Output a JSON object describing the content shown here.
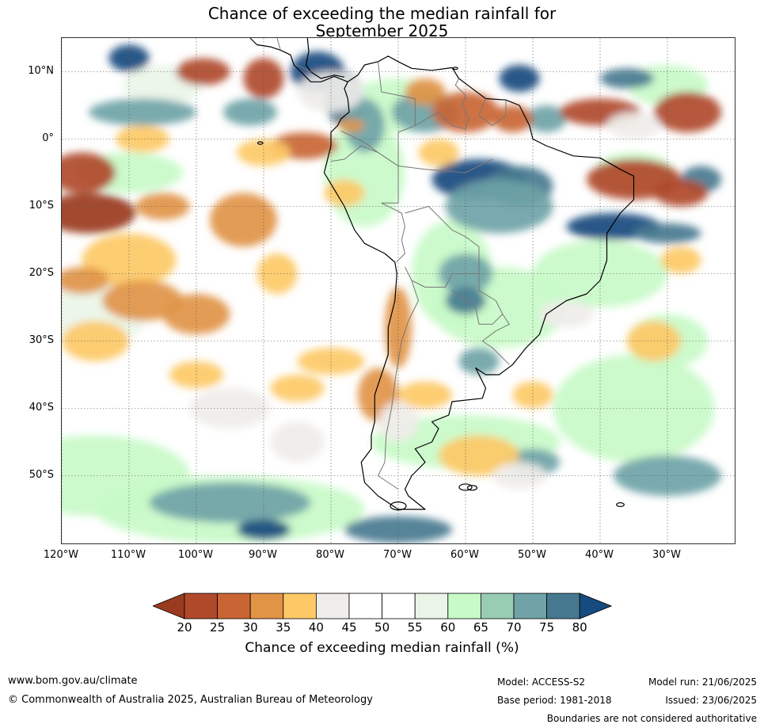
{
  "title": {
    "line1": "Chance of exceeding the median rainfall for",
    "line2": "September 2025"
  },
  "lat_labels": [
    "10°N",
    "0°",
    "10°S",
    "20°S",
    "30°S",
    "40°S",
    "50°S"
  ],
  "lon_labels": [
    "120°W",
    "110°W",
    "100°W",
    "90°W",
    "80°W",
    "70°W",
    "60°W",
    "50°W",
    "40°W",
    "30°W"
  ],
  "colorbar": {
    "ticks": [
      "20",
      "25",
      "30",
      "35",
      "40",
      "45",
      "50",
      "55",
      "60",
      "65",
      "70",
      "75",
      "80"
    ],
    "colors": [
      "#9a3b20",
      "#b0492a",
      "#c96534",
      "#e19446",
      "#fdc966",
      "#efede9",
      "#ffffff",
      "#ffffff",
      "#eaf5e8",
      "#c8fac8",
      "#99cdb3",
      "#6fa3a7",
      "#46798f",
      "#154b7e"
    ],
    "label": "Chance of exceeding median rainfall (%)"
  },
  "footer": {
    "website": "www.bom.gov.au/climate",
    "copyright": "© Commonwealth of Australia 2025, Australian Bureau of Meteorology",
    "model": "Model: ACCESS-S2",
    "base_period": "Base period: 1981-2018",
    "model_run": "Model run: 21/06/2025",
    "issued": "Issued: 23/06/2025",
    "disclaimer": "Boundaries are not considered authoritative"
  }
}
